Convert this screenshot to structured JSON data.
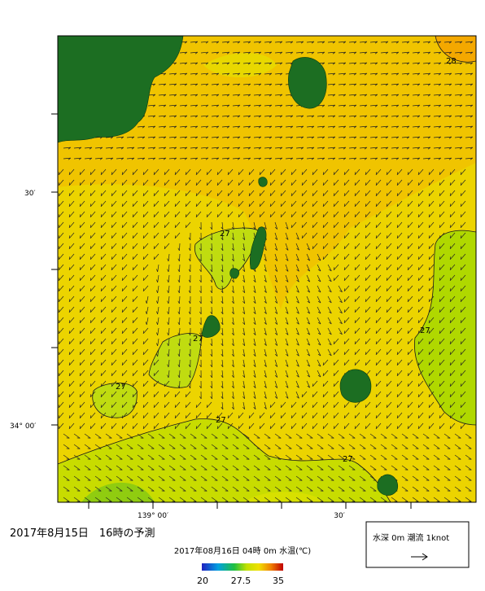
{
  "map": {
    "lat_labels": [
      "30′",
      "34° 00′"
    ],
    "lon_labels": [
      "139° 00′",
      "30′"
    ],
    "contour_labels": [
      "28",
      "27",
      "27",
      "27",
      "27",
      "27",
      "27"
    ]
  },
  "caption": "2017年8月15日　16時の予測",
  "colorbar": {
    "title": "2017年08月16日 04時 0m 水温(℃)",
    "ticks": [
      "20",
      "27.5",
      "35"
    ]
  },
  "legend": {
    "label": "水深 0m 潮流 1knot"
  }
}
